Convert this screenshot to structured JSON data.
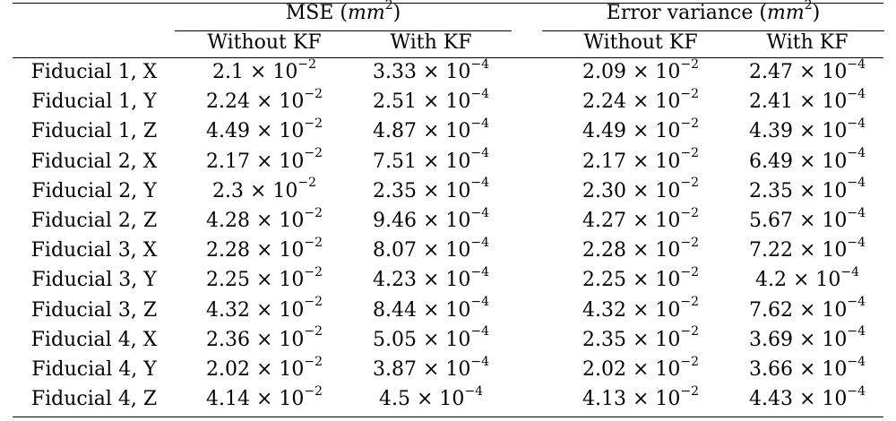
{
  "table": {
    "groups": [
      {
        "label": "MSE",
        "unit_base": "mm",
        "unit_exp": "2"
      },
      {
        "label": "Error variance",
        "unit_base": "mm",
        "unit_exp": "2"
      }
    ],
    "subheaders": [
      "Without KF",
      "With KF",
      "Without KF",
      "With KF"
    ],
    "rows": [
      {
        "label": "Fiducial 1, X",
        "cells": [
          [
            "2.1",
            "-2"
          ],
          [
            "3.33",
            "-4"
          ],
          [
            "2.09",
            "-2"
          ],
          [
            "2.47",
            "-4"
          ]
        ]
      },
      {
        "label": "Fiducial 1, Y",
        "cells": [
          [
            "2.24",
            "-2"
          ],
          [
            "2.51",
            "-4"
          ],
          [
            "2.24",
            "-2"
          ],
          [
            "2.41",
            "-4"
          ]
        ]
      },
      {
        "label": "Fiducial 1, Z",
        "cells": [
          [
            "4.49",
            "-2"
          ],
          [
            "4.87",
            "-4"
          ],
          [
            "4.49",
            "-2"
          ],
          [
            "4.39",
            "-4"
          ]
        ]
      },
      {
        "label": "Fiducial 2, X",
        "cells": [
          [
            "2.17",
            "-2"
          ],
          [
            "7.51",
            "-4"
          ],
          [
            "2.17",
            "-2"
          ],
          [
            "6.49",
            "-4"
          ]
        ]
      },
      {
        "label": "Fiducial 2, Y",
        "cells": [
          [
            "2.3",
            "-2"
          ],
          [
            "2.35",
            "-4"
          ],
          [
            "2.30",
            "-2"
          ],
          [
            "2.35",
            "-4"
          ]
        ]
      },
      {
        "label": "Fiducial 2, Z",
        "cells": [
          [
            "4.28",
            "-2"
          ],
          [
            "9.46",
            "-4"
          ],
          [
            "4.27",
            "-2"
          ],
          [
            "5.67",
            "-4"
          ]
        ]
      },
      {
        "label": "Fiducial 3, X",
        "cells": [
          [
            "2.28",
            "-2"
          ],
          [
            "8.07",
            "-4"
          ],
          [
            "2.28",
            "-2"
          ],
          [
            "7.22",
            "-4"
          ]
        ]
      },
      {
        "label": "Fiducial 3, Y",
        "cells": [
          [
            "2.25",
            "-2"
          ],
          [
            "4.23",
            "-4"
          ],
          [
            "2.25",
            "-2"
          ],
          [
            "4.2",
            "-4"
          ]
        ]
      },
      {
        "label": "Fiducial 3, Z",
        "cells": [
          [
            "4.32",
            "-2"
          ],
          [
            "8.44",
            "-4"
          ],
          [
            "4.32",
            "-2"
          ],
          [
            "7.62",
            "-4"
          ]
        ]
      },
      {
        "label": "Fiducial 4, X",
        "cells": [
          [
            "2.36",
            "-2"
          ],
          [
            "5.05",
            "-4"
          ],
          [
            "2.35",
            "-2"
          ],
          [
            "3.69",
            "-4"
          ]
        ]
      },
      {
        "label": "Fiducial 4, Y",
        "cells": [
          [
            "2.02",
            "-2"
          ],
          [
            "3.87",
            "-4"
          ],
          [
            "2.02",
            "-2"
          ],
          [
            "3.66",
            "-4"
          ]
        ]
      },
      {
        "label": "Fiducial 4, Z",
        "cells": [
          [
            "4.14",
            "-2"
          ],
          [
            "4.5",
            "-4"
          ],
          [
            "4.13",
            "-2"
          ],
          [
            "4.43",
            "-4"
          ]
        ]
      }
    ]
  }
}
